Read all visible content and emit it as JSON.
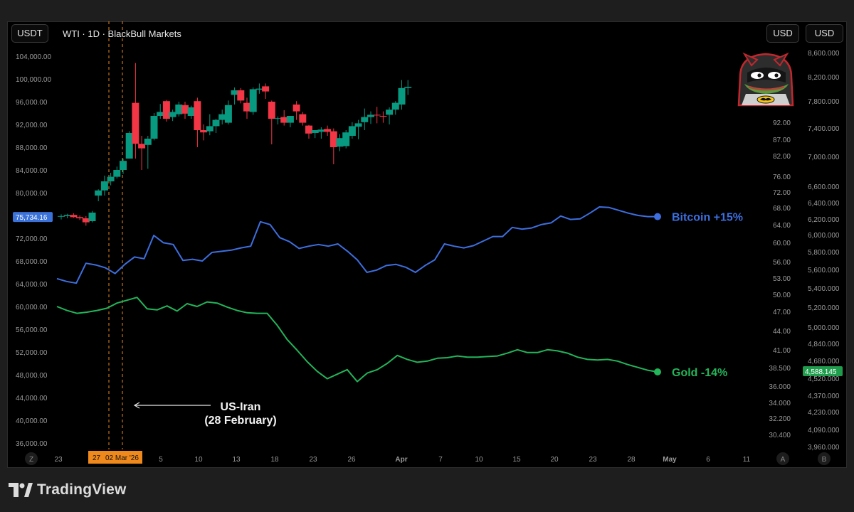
{
  "header": {
    "left_currency": "USDT",
    "title": "WTI · 1D · BlackBull Markets",
    "right_currency_1": "USD",
    "right_currency_2": "USD"
  },
  "footer": {
    "brand": "TradingView"
  },
  "colors": {
    "up": "#089981",
    "down": "#f23645",
    "bitcoin": "#3d6fe0",
    "gold": "#22b55a",
    "marker": "#f0891b",
    "price_tag": "#3b72d9"
  },
  "chart_data": {
    "type": "candlestick+line",
    "title": "WTI · 1D · BlackBull Markets",
    "x_labels": [
      "23",
      "27",
      "02 Mar '26",
      "5",
      "10",
      "13",
      "18",
      "23",
      "26",
      "Apr",
      "7",
      "10",
      "15",
      "20",
      "23",
      "28",
      "May",
      "6",
      "11"
    ],
    "left_axis": {
      "currency": "USDT",
      "range": [
        34000,
        106000
      ],
      "ticks": [
        "104,000.00",
        "100,000.00",
        "96,000.00",
        "92,000.00",
        "88,000.00",
        "84,000.00",
        "80,000.00",
        "76,000.00",
        "72,000.00",
        "68,000.00",
        "64,000.00",
        "60,000.00",
        "56,000.00",
        "52,000.00",
        "48,000.00",
        "44,000.00",
        "40,000.00",
        "36,000.00"
      ],
      "current_price_label": "75,734.16"
    },
    "middle_axis": {
      "currency": "USD",
      "ticks": [
        "92.00",
        "87.00",
        "82.00",
        "76.00",
        "72.00",
        "68.00",
        "64.00",
        "60.00",
        "56.00",
        "53.00",
        "50.00",
        "47.00",
        "44.00",
        "41.00",
        "38.500",
        "36.000",
        "34.000",
        "32.200",
        "30.400"
      ]
    },
    "right_axis": {
      "currency": "USD",
      "ticks": [
        "8,600.000",
        "8,200.000",
        "7,800.000",
        "7,400.000",
        "7,000.000",
        "6,600.000",
        "6,400.000",
        "6,200.000",
        "6,000.000",
        "5,800.000",
        "5,600.000",
        "5,400.000",
        "5,200.000",
        "5,000.000",
        "4,840.000",
        "4,680.000",
        "4,520.000",
        "4,370.000",
        "4,230.000",
        "4,090.000",
        "3,960.000"
      ],
      "current_price_label": "4,588.145"
    },
    "candles_usdt": [
      [
        75800,
        76200,
        75300,
        75900
      ],
      [
        75900,
        76300,
        75500,
        76100
      ],
      [
        76100,
        76400,
        75600,
        75700
      ],
      [
        75700,
        76000,
        75200,
        75500
      ],
      [
        75500,
        75900,
        74200,
        74800
      ],
      [
        75000,
        76800,
        74800,
        76500
      ],
      [
        79500,
        80600,
        78500,
        80400
      ],
      [
        80400,
        83000,
        79500,
        82000
      ],
      [
        82000,
        83500,
        81300,
        82800
      ],
      [
        82800,
        84600,
        82500,
        84000
      ],
      [
        84000,
        86000,
        83300,
        85600
      ],
      [
        86000,
        90800,
        86000,
        90500
      ],
      [
        95800,
        102800,
        86000,
        88600
      ],
      [
        88600,
        90000,
        84000,
        87800
      ],
      [
        88400,
        90000,
        84200,
        89500
      ],
      [
        89500,
        94000,
        89200,
        93500
      ],
      [
        93500,
        95600,
        93000,
        94200
      ],
      [
        96100,
        96300,
        92500,
        93000
      ],
      [
        93300,
        94600,
        92600,
        94200
      ],
      [
        93800,
        96000,
        93400,
        95500
      ],
      [
        95400,
        96000,
        93000,
        93900
      ],
      [
        93500,
        95300,
        93000,
        95000
      ],
      [
        96100,
        96700,
        88000,
        91000
      ],
      [
        91000,
        92000,
        89200,
        90600
      ],
      [
        90800,
        93800,
        90100,
        91700
      ],
      [
        91700,
        93000,
        90500,
        92800
      ],
      [
        92800,
        94600,
        92000,
        93800
      ],
      [
        92300,
        96200,
        92000,
        95400
      ],
      [
        97200,
        98500,
        95500,
        98000
      ],
      [
        98000,
        98400,
        95700,
        96200
      ],
      [
        95800,
        96700,
        93000,
        94300
      ],
      [
        94200,
        98500,
        93700,
        98200
      ],
      [
        98100,
        99200,
        97400,
        98300
      ],
      [
        98700,
        99200,
        96500,
        97800
      ],
      [
        96000,
        96200,
        88500,
        93000
      ],
      [
        93000,
        93400,
        92000,
        93100
      ],
      [
        93300,
        94500,
        91800,
        92300
      ],
      [
        92300,
        93000,
        91500,
        93500
      ],
      [
        95500,
        96100,
        92800,
        94300
      ],
      [
        93800,
        94200,
        91800,
        92300
      ],
      [
        91800,
        91900,
        89500,
        90400
      ],
      [
        90500,
        91000,
        89600,
        91000
      ],
      [
        90700,
        91500,
        89500,
        91100
      ],
      [
        91200,
        91800,
        90000,
        90700
      ],
      [
        90800,
        91300,
        85000,
        88000
      ],
      [
        88100,
        90300,
        87300,
        89600
      ],
      [
        88200,
        91000,
        87800,
        90600
      ],
      [
        90000,
        92400,
        89500,
        91700
      ],
      [
        91600,
        92800,
        89400,
        92200
      ],
      [
        92400,
        94800,
        91000,
        93300
      ],
      [
        93300,
        94300,
        92100,
        93700
      ],
      [
        93700,
        95100,
        92200,
        93600
      ],
      [
        93500,
        94300,
        92300,
        93400
      ],
      [
        93700,
        95000,
        92000,
        94600
      ],
      [
        94600,
        96100,
        93700,
        95800
      ],
      [
        95500,
        99800,
        94600,
        98400
      ],
      [
        98400,
        99800,
        97200,
        98600
      ]
    ],
    "series": [
      {
        "name": "Bitcoin",
        "label": "Bitcoin +15%",
        "values": [
          64900,
          64400,
          64100,
          67600,
          67300,
          66800,
          65800,
          67400,
          68700,
          68400,
          72500,
          71200,
          70900,
          68100,
          68300,
          68000,
          69500,
          69700,
          69900,
          70300,
          70600,
          74900,
          74400,
          72100,
          71400,
          70200,
          70600,
          70900,
          70600,
          71000,
          69700,
          68200,
          66000,
          66400,
          67200,
          67400,
          66900,
          66000,
          67200,
          68200,
          71000,
          70600,
          70300,
          70700,
          71500,
          72300,
          72300,
          73900,
          73600,
          73800,
          74400,
          74700,
          75900,
          75300,
          75400,
          76400,
          77500,
          77400,
          76900,
          76400,
          76000,
          75800,
          75800
        ]
      },
      {
        "name": "Gold",
        "label": "Gold -14%",
        "values": [
          60000,
          59300,
          58800,
          59000,
          59300,
          59700,
          60600,
          61100,
          61600,
          59600,
          59400,
          60100,
          59200,
          60500,
          60000,
          60800,
          60600,
          59900,
          59300,
          58900,
          58800,
          58800,
          56700,
          54200,
          52300,
          50300,
          48600,
          47300,
          48100,
          48900,
          46800,
          48300,
          48900,
          50000,
          51400,
          50700,
          50200,
          50400,
          50900,
          51000,
          51300,
          51100,
          51100,
          51200,
          51300,
          51800,
          52400,
          51900,
          51900,
          52400,
          52200,
          51800,
          51100,
          50700,
          50600,
          50700,
          50400,
          49800,
          49300,
          48800,
          48500
        ]
      }
    ],
    "annotations": {
      "event_label_line1": "US-Iran",
      "event_label_line2": "(28 February)",
      "marker_dates": [
        "27",
        "02 Mar '26"
      ]
    },
    "corner_buttons": {
      "left": "Z",
      "right_a": "A",
      "right_b": "B"
    }
  }
}
